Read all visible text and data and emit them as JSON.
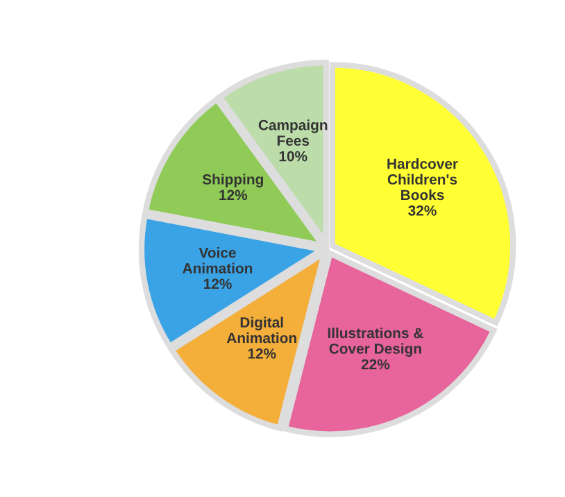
{
  "chart_data": {
    "type": "pie",
    "categories": [
      "Hardcover\nChildren's\nBooks",
      "Illustrations &\nCover Design",
      "Digital\nAnimation",
      "Voice\nAnimation",
      "Shipping",
      "Campaign\nFees"
    ],
    "values": [
      32,
      22,
      12,
      12,
      12,
      10
    ],
    "value_labels": [
      "32%",
      "22%",
      "12%",
      "12%",
      "12%",
      "10%"
    ],
    "colors": [
      "#ffff33",
      "#e8649c",
      "#f4ae3a",
      "#3aa3e6",
      "#8fcb56",
      "#bcdcaa"
    ],
    "legend": false
  }
}
